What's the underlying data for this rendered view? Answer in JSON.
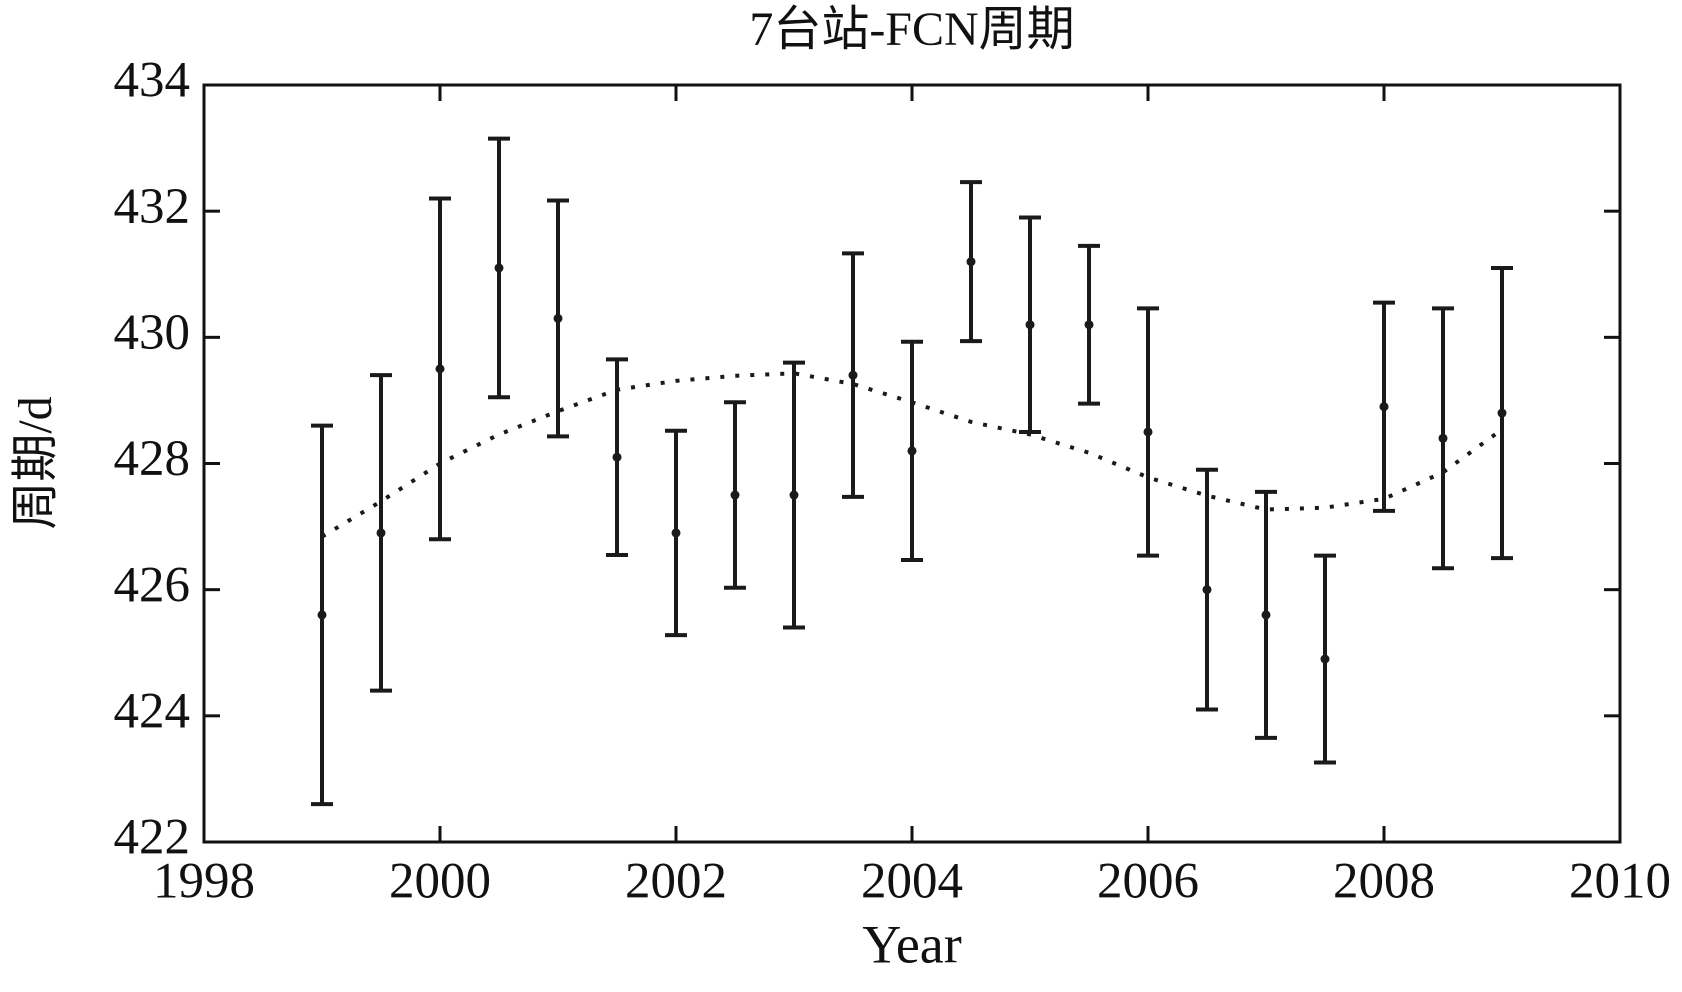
{
  "chart_data": {
    "type": "errorbar",
    "title": "7台站-FCN周期",
    "x_label": "Year",
    "y_label": "周期/d",
    "xlim": [
      1998,
      2010
    ],
    "xticks": [
      1998,
      2000,
      2002,
      2004,
      2006,
      2008,
      2010
    ],
    "ylim": [
      422,
      434
    ],
    "yticks": [
      422,
      424,
      426,
      428,
      430,
      432,
      434
    ],
    "series": [
      {
        "kind": "errorbar",
        "color": "#1a1a1a",
        "x": [
          1999,
          1999.5,
          2000,
          2000.5,
          2001,
          2001.5,
          2002,
          2002.5,
          2003,
          2003.5,
          2004,
          2004.5,
          2005,
          2005.5,
          2006,
          2006.5,
          2007,
          2007.5,
          2008,
          2008.5,
          2009
        ],
        "values": [
          425.6,
          426.9,
          429.5,
          431.1,
          430.3,
          428.1,
          426.9,
          427.5,
          427.5,
          429.4,
          428.2,
          431.2,
          430.2,
          430.2,
          428.5,
          426.0,
          425.6,
          424.9,
          428.9,
          428.4,
          428.8
        ],
        "errors": [
          3.0,
          2.5,
          2.7,
          2.05,
          1.87,
          1.55,
          1.62,
          1.47,
          2.1,
          1.93,
          1.73,
          1.26,
          1.7,
          1.25,
          1.96,
          1.9,
          1.95,
          1.64,
          1.65,
          2.06,
          2.3
        ]
      },
      {
        "kind": "fit",
        "color": "#1a1a1a",
        "x": [
          1999,
          1999.5,
          2000,
          2000.5,
          2001,
          2001.5,
          2002,
          2002.5,
          2003,
          2003.5,
          2004,
          2004.5,
          2005,
          2005.5,
          2006,
          2006.5,
          2007,
          2007.5,
          2008,
          2008.5,
          2009
        ],
        "values": [
          426.84,
          427.4,
          428.0,
          428.46,
          428.83,
          429.17,
          429.31,
          429.39,
          429.43,
          429.26,
          428.97,
          428.66,
          428.46,
          428.17,
          427.78,
          427.49,
          427.27,
          427.3,
          427.44,
          427.86,
          428.54
        ]
      }
    ]
  }
}
